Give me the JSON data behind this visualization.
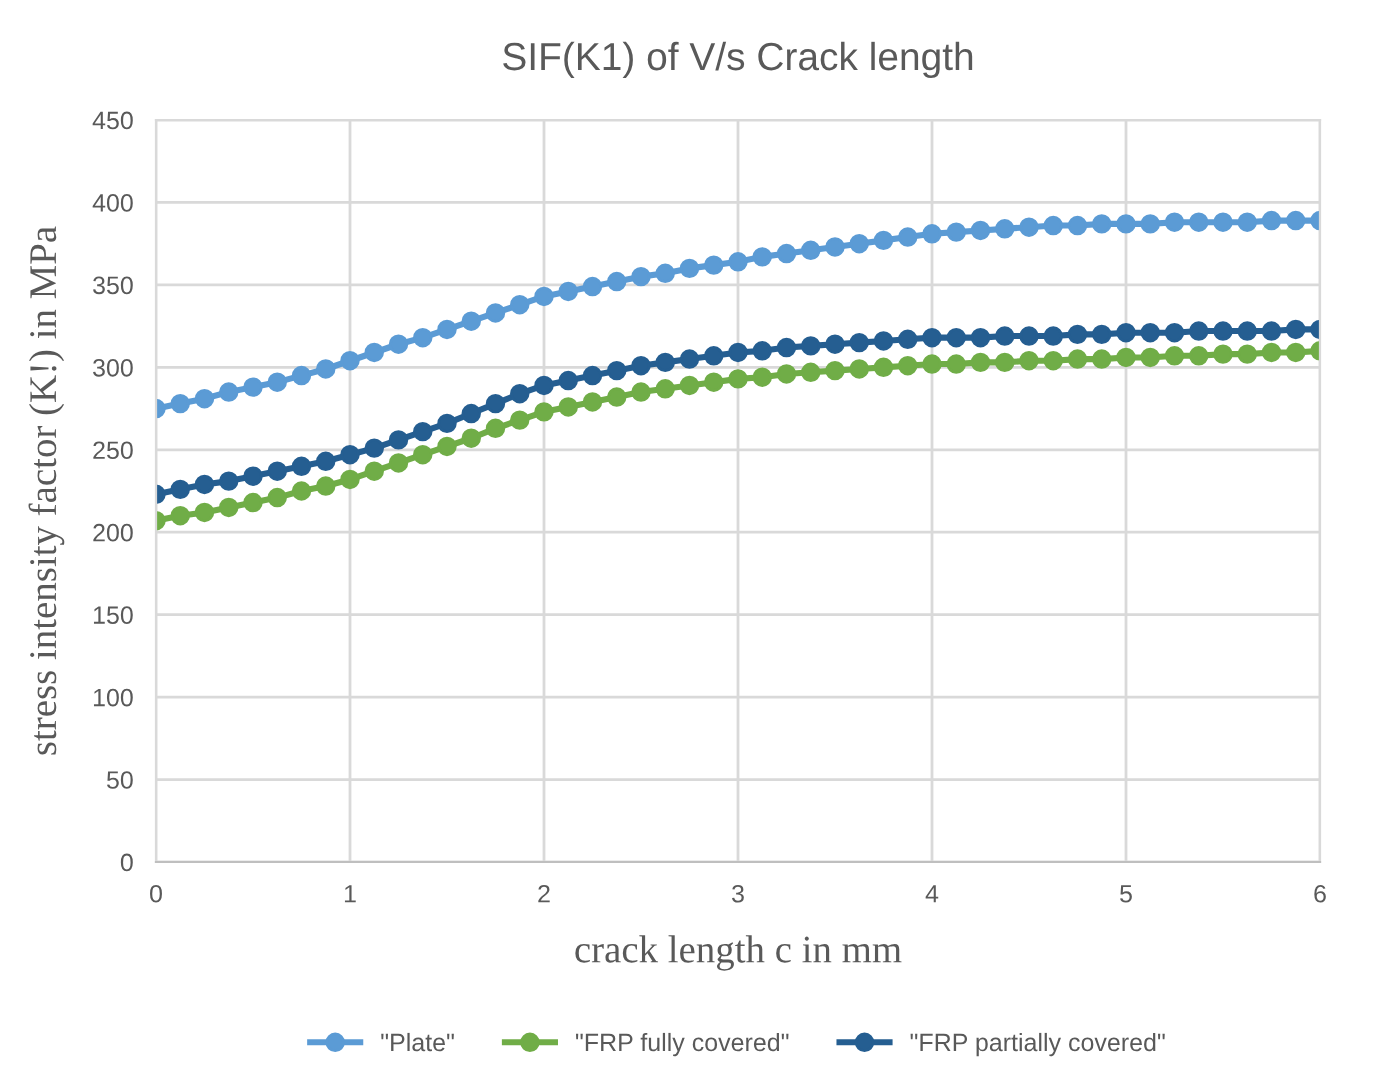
{
  "chart_data": {
    "type": "line",
    "title": "SIF(K1) of V/s Crack length",
    "xlabel": "crack length c in mm",
    "ylabel": "stress intensity factor (K!) in MPa",
    "x": [
      0,
      0.125,
      0.25,
      0.375,
      0.5,
      0.625,
      0.75,
      0.875,
      1,
      1.125,
      1.25,
      1.375,
      1.5,
      1.625,
      1.75,
      1.875,
      2,
      2.125,
      2.25,
      2.375,
      2.5,
      2.625,
      2.75,
      2.875,
      3,
      3.125,
      3.25,
      3.375,
      3.5,
      3.625,
      3.75,
      3.875,
      4,
      4.125,
      4.25,
      4.375,
      4.5,
      4.625,
      4.75,
      4.875,
      5,
      5.125,
      5.25,
      5.375,
      5.5,
      5.625,
      5.75,
      5.875,
      6
    ],
    "series": [
      {
        "name": "\"Plate\"",
        "color": "#5b9bd5",
        "values": [
          275,
          278,
          281,
          285,
          288,
          291,
          295,
          299,
          304,
          309,
          314,
          318,
          323,
          328,
          333,
          338,
          343,
          346,
          349,
          352,
          355,
          357,
          360,
          362,
          364,
          367,
          369,
          371,
          373,
          375,
          377,
          379,
          381,
          382,
          383,
          384,
          385,
          386,
          386,
          387,
          387,
          387,
          388,
          388,
          388,
          388,
          389,
          389,
          389
        ]
      },
      {
        "name": "\"FRP fully covered\"",
        "color": "#70ad47",
        "values": [
          207,
          210,
          212,
          215,
          218,
          221,
          225,
          228,
          232,
          237,
          242,
          247,
          252,
          257,
          263,
          268,
          273,
          276,
          279,
          282,
          285,
          287,
          289,
          291,
          293,
          294,
          296,
          297,
          298,
          299,
          300,
          301,
          302,
          302,
          303,
          303,
          304,
          304,
          305,
          305,
          306,
          306,
          307,
          307,
          308,
          308,
          309,
          309,
          310
        ]
      },
      {
        "name": "\"FRP partially covered\"",
        "color": "#255e91",
        "values": [
          223,
          226,
          229,
          231,
          234,
          237,
          240,
          243,
          247,
          251,
          256,
          261,
          266,
          272,
          278,
          284,
          289,
          292,
          295,
          298,
          301,
          303,
          305,
          307,
          309,
          310,
          312,
          313,
          314,
          315,
          316,
          317,
          318,
          318,
          318,
          319,
          319,
          319,
          320,
          320,
          321,
          321,
          321,
          322,
          322,
          322,
          322,
          323,
          323
        ]
      }
    ],
    "xlim": [
      0,
      6
    ],
    "xticks": [
      0,
      1,
      2,
      3,
      4,
      5,
      6
    ],
    "ylim": [
      0,
      450
    ],
    "yticks": [
      0,
      50,
      100,
      150,
      200,
      250,
      300,
      350,
      400,
      450
    ],
    "grid": true,
    "legend": "bottom",
    "marker": "circle",
    "line_style": "solid"
  }
}
